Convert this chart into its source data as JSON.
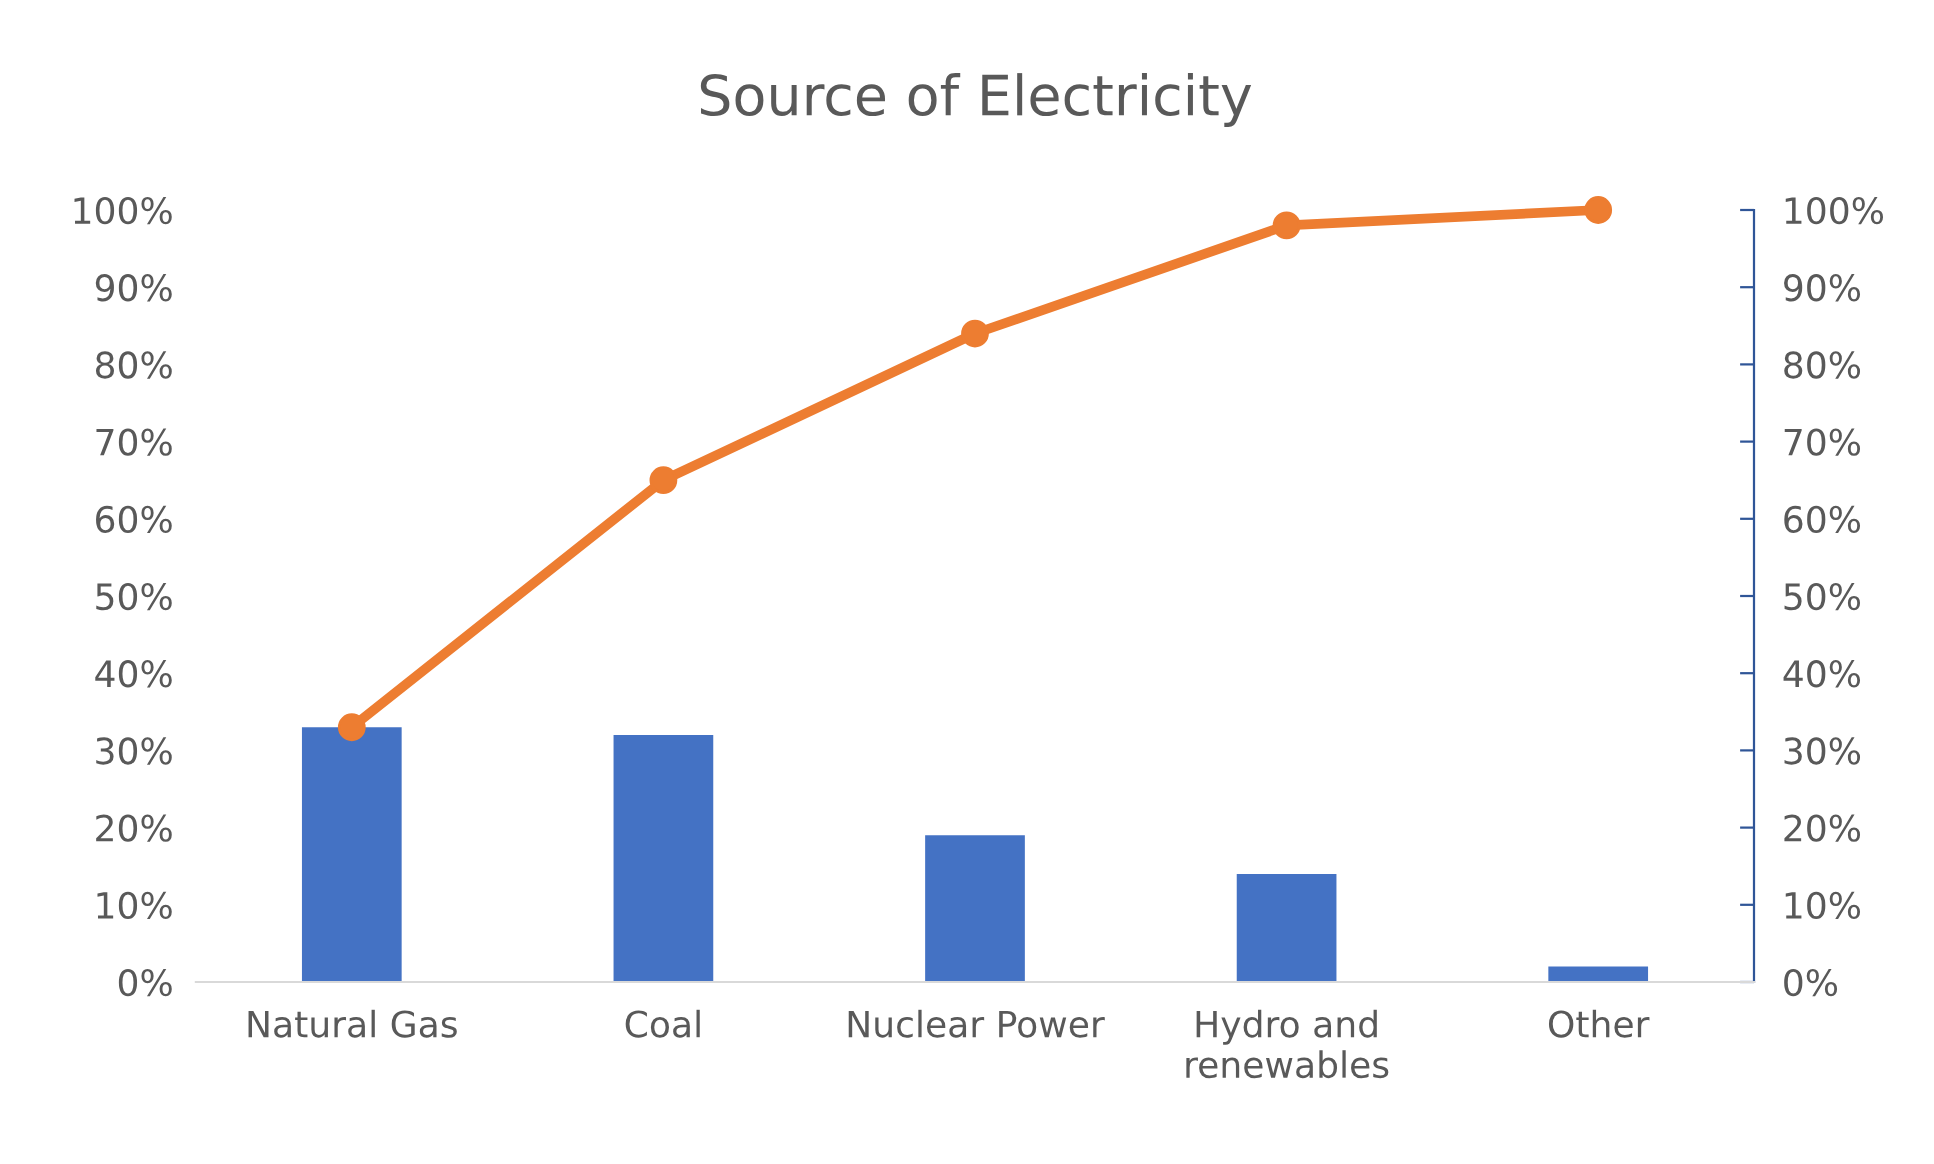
{
  "chart_data": {
    "type": "bar",
    "title": "Source of Electricity",
    "categories": [
      "Natural Gas",
      "Coal",
      "Nuclear Power",
      "Hydro and\nrenewables",
      "Other"
    ],
    "series": [
      {
        "color": "#4472c4",
        "values": [
          33,
          32,
          19,
          14,
          2
        ]
      },
      {
        "type": "line",
        "color": "#ed7d31",
        "marker": "circle",
        "line_style": "solid",
        "values": [
          33,
          65,
          84,
          98,
          100
        ]
      }
    ],
    "ylim": [
      0,
      100
    ],
    "yticks": [
      {
        "value": 0,
        "label": "0%"
      },
      {
        "value": 10,
        "label": "10%"
      },
      {
        "value": 20,
        "label": "20%"
      },
      {
        "value": 30,
        "label": "30%"
      },
      {
        "value": 40,
        "label": "40%"
      },
      {
        "value": 50,
        "label": "50%"
      },
      {
        "value": 60,
        "label": "60%"
      },
      {
        "value": 70,
        "label": "70%"
      },
      {
        "value": 80,
        "label": "80%"
      },
      {
        "value": 90,
        "label": "90%"
      },
      {
        "value": 100,
        "label": "100%"
      }
    ],
    "y2lim": [
      0,
      100
    ],
    "y2ticks": [
      {
        "value": 0,
        "label": "0%"
      },
      {
        "value": 10,
        "label": "10%"
      },
      {
        "value": 20,
        "label": "20%"
      },
      {
        "value": 30,
        "label": "30%"
      },
      {
        "value": 40,
        "label": "40%"
      },
      {
        "value": 50,
        "label": "50%"
      },
      {
        "value": 60,
        "label": "60%"
      },
      {
        "value": 70,
        "label": "70%"
      },
      {
        "value": 80,
        "label": "80%"
      },
      {
        "value": 90,
        "label": "90%"
      },
      {
        "value": 100,
        "label": "100%"
      }
    ],
    "grid": false,
    "legend": false
  }
}
